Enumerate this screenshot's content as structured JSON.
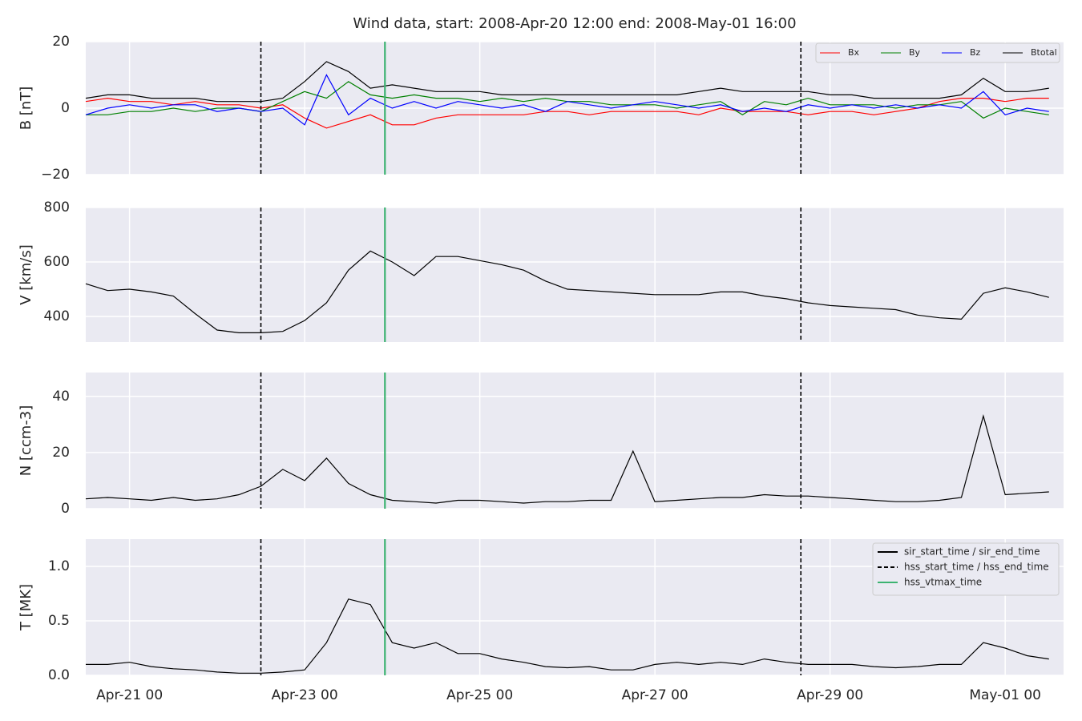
{
  "chart_data": [
    {
      "type": "line",
      "title": "Wind data, start: 2008-Apr-20 12:00  end: 2008-May-01 16:00",
      "ylabel": "B [nT]",
      "x": [
        "2008-04-20 12:00",
        "2008-04-20 18:00",
        "2008-04-21 00:00",
        "2008-04-21 06:00",
        "2008-04-21 12:00",
        "2008-04-21 18:00",
        "2008-04-22 00:00",
        "2008-04-22 06:00",
        "2008-04-22 12:00",
        "2008-04-22 18:00",
        "2008-04-23 00:00",
        "2008-04-23 06:00",
        "2008-04-23 12:00",
        "2008-04-23 18:00",
        "2008-04-24 00:00",
        "2008-04-24 06:00",
        "2008-04-24 12:00",
        "2008-04-24 18:00",
        "2008-04-25 00:00",
        "2008-04-25 06:00",
        "2008-04-25 12:00",
        "2008-04-25 18:00",
        "2008-04-26 00:00",
        "2008-04-26 06:00",
        "2008-04-26 12:00",
        "2008-04-26 18:00",
        "2008-04-27 00:00",
        "2008-04-27 06:00",
        "2008-04-27 12:00",
        "2008-04-27 18:00",
        "2008-04-28 00:00",
        "2008-04-28 06:00",
        "2008-04-28 12:00",
        "2008-04-28 18:00",
        "2008-04-29 00:00",
        "2008-04-29 06:00",
        "2008-04-29 12:00",
        "2008-04-29 18:00",
        "2008-04-30 00:00",
        "2008-04-30 06:00",
        "2008-04-30 12:00",
        "2008-04-30 18:00",
        "2008-05-01 00:00",
        "2008-05-01 06:00",
        "2008-05-01 12:00"
      ],
      "xlim": [
        "2008-04-20 12:00",
        "2008-05-01 16:00"
      ],
      "ylim": [
        -20,
        20
      ],
      "yticks": [
        {
          "value": -20,
          "label": "−20"
        },
        0,
        20
      ],
      "grid": true,
      "legend": "upper right",
      "series": [
        {
          "name": "Bx",
          "color": "#ff0000",
          "values": [
            2,
            3,
            2,
            2,
            1,
            2,
            1,
            1,
            0,
            1,
            -3,
            -6,
            -4,
            -2,
            -5,
            -5,
            -3,
            -2,
            -2,
            -2,
            -2,
            -1,
            -1,
            -2,
            -1,
            -1,
            -1,
            -1,
            -2,
            0,
            -1,
            -1,
            -1,
            -2,
            -1,
            -1,
            -2,
            -1,
            0,
            2,
            3,
            3,
            2,
            3,
            3
          ]
        },
        {
          "name": "By",
          "color": "#008000",
          "values": [
            -2,
            -2,
            -1,
            -1,
            0,
            -1,
            0,
            0,
            -1,
            2,
            5,
            3,
            8,
            4,
            3,
            4,
            3,
            3,
            2,
            3,
            2,
            3,
            2,
            2,
            1,
            1,
            1,
            0,
            1,
            2,
            -2,
            2,
            1,
            3,
            1,
            1,
            1,
            0,
            1,
            1,
            2,
            -3,
            0,
            -1,
            -2
          ]
        },
        {
          "name": "Bz",
          "color": "#0000ff",
          "values": [
            -2,
            0,
            1,
            0,
            1,
            1,
            -1,
            0,
            -1,
            0,
            -5,
            10,
            -2,
            3,
            0,
            2,
            0,
            2,
            1,
            0,
            1,
            -1,
            2,
            1,
            0,
            1,
            2,
            1,
            0,
            1,
            -1,
            0,
            -1,
            1,
            0,
            1,
            0,
            1,
            0,
            1,
            0,
            5,
            -2,
            0,
            -1
          ]
        },
        {
          "name": "Btotal",
          "color": "#000000",
          "values": [
            3,
            4,
            4,
            3,
            3,
            3,
            2,
            2,
            2,
            3,
            8,
            14,
            11,
            6,
            7,
            6,
            5,
            5,
            5,
            4,
            4,
            4,
            4,
            4,
            4,
            4,
            4,
            4,
            5,
            6,
            5,
            5,
            5,
            5,
            4,
            4,
            3,
            3,
            3,
            3,
            4,
            9,
            5,
            5,
            6
          ]
        }
      ]
    },
    {
      "type": "line",
      "ylabel": "V [km/s]",
      "x": [
        "2008-04-20 12:00",
        "2008-04-20 18:00",
        "2008-04-21 00:00",
        "2008-04-21 06:00",
        "2008-04-21 12:00",
        "2008-04-21 18:00",
        "2008-04-22 00:00",
        "2008-04-22 06:00",
        "2008-04-22 12:00",
        "2008-04-22 18:00",
        "2008-04-23 00:00",
        "2008-04-23 06:00",
        "2008-04-23 12:00",
        "2008-04-23 18:00",
        "2008-04-24 00:00",
        "2008-04-24 06:00",
        "2008-04-24 12:00",
        "2008-04-24 18:00",
        "2008-04-25 00:00",
        "2008-04-25 06:00",
        "2008-04-25 12:00",
        "2008-04-25 18:00",
        "2008-04-26 00:00",
        "2008-04-26 06:00",
        "2008-04-26 12:00",
        "2008-04-26 18:00",
        "2008-04-27 00:00",
        "2008-04-27 06:00",
        "2008-04-27 12:00",
        "2008-04-27 18:00",
        "2008-04-28 00:00",
        "2008-04-28 06:00",
        "2008-04-28 12:00",
        "2008-04-28 18:00",
        "2008-04-29 00:00",
        "2008-04-29 06:00",
        "2008-04-29 12:00",
        "2008-04-29 18:00",
        "2008-04-30 00:00",
        "2008-04-30 06:00",
        "2008-04-30 12:00",
        "2008-04-30 18:00",
        "2008-05-01 00:00",
        "2008-05-01 06:00",
        "2008-05-01 12:00"
      ],
      "xlim": [
        "2008-04-20 12:00",
        "2008-05-01 16:00"
      ],
      "ylim": [
        306,
        800
      ],
      "yticks": [
        400,
        600,
        800
      ],
      "grid": true,
      "color": "#000000",
      "values": [
        520,
        495,
        500,
        490,
        475,
        410,
        350,
        340,
        340,
        345,
        385,
        450,
        570,
        640,
        600,
        550,
        620,
        620,
        605,
        590,
        570,
        530,
        500,
        495,
        490,
        485,
        480,
        480,
        480,
        490,
        490,
        475,
        465,
        450,
        440,
        435,
        430,
        425,
        405,
        395,
        390,
        485,
        505,
        490,
        470
      ]
    },
    {
      "type": "line",
      "ylabel": "N [ccm-3]",
      "x": [
        "2008-04-20 12:00",
        "2008-04-20 18:00",
        "2008-04-21 00:00",
        "2008-04-21 06:00",
        "2008-04-21 12:00",
        "2008-04-21 18:00",
        "2008-04-22 00:00",
        "2008-04-22 06:00",
        "2008-04-22 12:00",
        "2008-04-22 18:00",
        "2008-04-23 00:00",
        "2008-04-23 06:00",
        "2008-04-23 12:00",
        "2008-04-23 18:00",
        "2008-04-24 00:00",
        "2008-04-24 06:00",
        "2008-04-24 12:00",
        "2008-04-24 18:00",
        "2008-04-25 00:00",
        "2008-04-25 06:00",
        "2008-04-25 12:00",
        "2008-04-25 18:00",
        "2008-04-26 00:00",
        "2008-04-26 06:00",
        "2008-04-26 12:00",
        "2008-04-26 18:00",
        "2008-04-27 00:00",
        "2008-04-27 06:00",
        "2008-04-27 12:00",
        "2008-04-27 18:00",
        "2008-04-28 00:00",
        "2008-04-28 06:00",
        "2008-04-28 12:00",
        "2008-04-28 18:00",
        "2008-04-29 00:00",
        "2008-04-29 06:00",
        "2008-04-29 12:00",
        "2008-04-29 18:00",
        "2008-04-30 00:00",
        "2008-04-30 06:00",
        "2008-04-30 12:00",
        "2008-04-30 18:00",
        "2008-05-01 00:00",
        "2008-05-01 06:00",
        "2008-05-01 12:00"
      ],
      "xlim": [
        "2008-04-20 12:00",
        "2008-05-01 16:00"
      ],
      "ylim": [
        0,
        48.5
      ],
      "yticks": [
        0,
        20,
        40
      ],
      "grid": true,
      "color": "#000000",
      "values": [
        3.5,
        4,
        3.5,
        3,
        4,
        3,
        3.5,
        5,
        8,
        14,
        10,
        18,
        9,
        5,
        3,
        2.5,
        2,
        3,
        3,
        2.5,
        2,
        2.5,
        2.5,
        3,
        3,
        20.5,
        2.5,
        3,
        3.5,
        4,
        4,
        5,
        4.5,
        4.5,
        4,
        3.5,
        3,
        2.5,
        2.5,
        3,
        4,
        33,
        5,
        5.5,
        6
      ]
    },
    {
      "type": "line",
      "ylabel": "T [MK]",
      "x": [
        "2008-04-20 12:00",
        "2008-04-20 18:00",
        "2008-04-21 00:00",
        "2008-04-21 06:00",
        "2008-04-21 12:00",
        "2008-04-21 18:00",
        "2008-04-22 00:00",
        "2008-04-22 06:00",
        "2008-04-22 12:00",
        "2008-04-22 18:00",
        "2008-04-23 00:00",
        "2008-04-23 06:00",
        "2008-04-23 12:00",
        "2008-04-23 18:00",
        "2008-04-24 00:00",
        "2008-04-24 06:00",
        "2008-04-24 12:00",
        "2008-04-24 18:00",
        "2008-04-25 00:00",
        "2008-04-25 06:00",
        "2008-04-25 12:00",
        "2008-04-25 18:00",
        "2008-04-26 00:00",
        "2008-04-26 06:00",
        "2008-04-26 12:00",
        "2008-04-26 18:00",
        "2008-04-27 00:00",
        "2008-04-27 06:00",
        "2008-04-27 12:00",
        "2008-04-27 18:00",
        "2008-04-28 00:00",
        "2008-04-28 06:00",
        "2008-04-28 12:00",
        "2008-04-28 18:00",
        "2008-04-29 00:00",
        "2008-04-29 06:00",
        "2008-04-29 12:00",
        "2008-04-29 18:00",
        "2008-04-30 00:00",
        "2008-04-30 06:00",
        "2008-04-30 12:00",
        "2008-04-30 18:00",
        "2008-05-01 00:00",
        "2008-05-01 06:00",
        "2008-05-01 12:00"
      ],
      "xlim": [
        "2008-04-20 12:00",
        "2008-05-01 16:00"
      ],
      "xticks": [
        {
          "value": "2008-04-21 00:00",
          "label": "Apr-21 00"
        },
        {
          "value": "2008-04-23 00:00",
          "label": "Apr-23 00"
        },
        {
          "value": "2008-04-25 00:00",
          "label": "Apr-25 00"
        },
        {
          "value": "2008-04-27 00:00",
          "label": "Apr-27 00"
        },
        {
          "value": "2008-04-29 00:00",
          "label": "Apr-29 00"
        },
        {
          "value": "2008-05-01 00:00",
          "label": "May-01 00"
        }
      ],
      "ylim": [
        0,
        1.25
      ],
      "yticks": [
        {
          "value": 0,
          "label": "0.0"
        },
        0.5,
        {
          "value": 1,
          "label": "1.0"
        }
      ],
      "grid": true,
      "color": "#000000",
      "legend": "upper right",
      "values": [
        0.1,
        0.1,
        0.12,
        0.08,
        0.06,
        0.05,
        0.03,
        0.02,
        0.02,
        0.03,
        0.05,
        0.3,
        0.7,
        0.65,
        0.3,
        0.25,
        0.3,
        0.2,
        0.2,
        0.15,
        0.12,
        0.08,
        0.07,
        0.08,
        0.05,
        0.05,
        0.1,
        0.12,
        0.1,
        0.12,
        0.1,
        0.15,
        0.12,
        0.1,
        0.1,
        0.1,
        0.08,
        0.07,
        0.08,
        0.1,
        0.1,
        0.3,
        0.25,
        0.18,
        0.15
      ],
      "events": [
        {
          "name": "sir_start_time / sir_end_time",
          "color": "#000000",
          "style": "solid",
          "times": []
        },
        {
          "name": "hss_start_time / hss_end_time",
          "color": "#000000",
          "style": "dashed",
          "times": [
            "2008-04-22 12:00",
            "2008-04-28 16:00"
          ]
        },
        {
          "name": "hss_vtmax_time",
          "color": "#3cb371",
          "style": "solid",
          "times": [
            "2008-04-23 22:00"
          ]
        }
      ]
    }
  ]
}
